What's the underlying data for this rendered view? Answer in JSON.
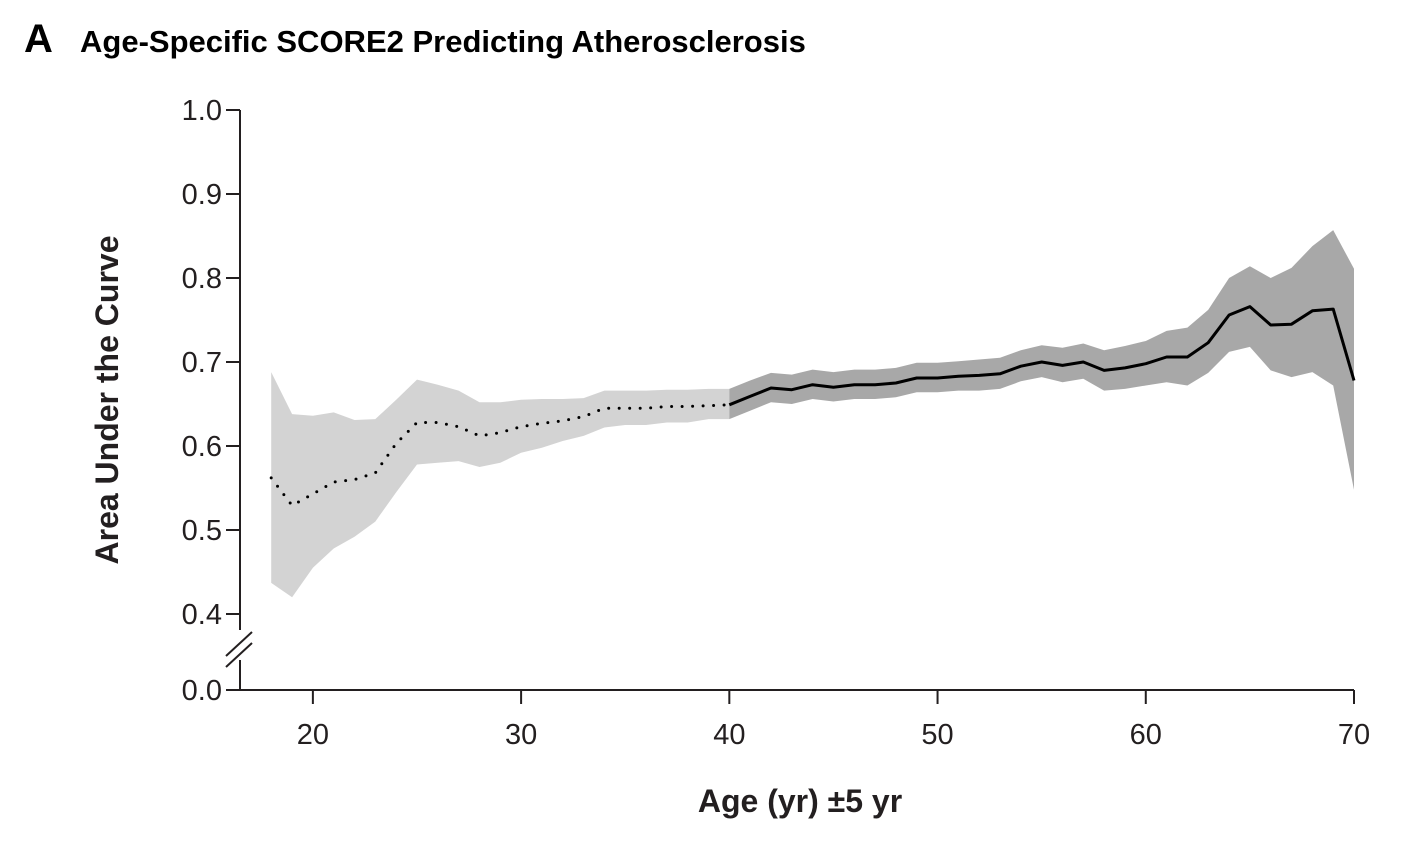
{
  "panel_label": "A",
  "chart_data": {
    "type": "line",
    "title": "Age-Specific SCORE2 Predicting Atherosclerosis",
    "xlabel": "Age (yr) ±5 yr",
    "ylabel": "Area Under the Curve",
    "xlim": [
      16.5,
      70
    ],
    "ylim": [
      0.4,
      1.0
    ],
    "y_axis_break": true,
    "y_break_baseline": 0.0,
    "x_ticks": [
      20,
      30,
      40,
      50,
      60,
      70
    ],
    "x_tick_labels": [
      "20",
      "30",
      "40",
      "50",
      "60",
      "70"
    ],
    "y_ticks": [
      0.4,
      0.5,
      0.6,
      0.7,
      0.8,
      0.9,
      1.0
    ],
    "y_tick_labels": [
      "0.4",
      "0.5",
      "0.6",
      "0.7",
      "0.8",
      "0.9",
      "1.0"
    ],
    "y_break_label": "0.0",
    "grid": false,
    "legend": "none",
    "series": [
      {
        "style": "dotted",
        "color": "#000000",
        "band_color": "#d3d3d3",
        "x": [
          18,
          19,
          20,
          21,
          22,
          23,
          24,
          25,
          26,
          27,
          28,
          29,
          30,
          31,
          32,
          33,
          34,
          35,
          36,
          37,
          38,
          39,
          40
        ],
        "y": [
          0.562,
          0.529,
          0.543,
          0.557,
          0.56,
          0.568,
          0.603,
          0.628,
          0.628,
          0.623,
          0.612,
          0.616,
          0.623,
          0.627,
          0.63,
          0.635,
          0.645,
          0.645,
          0.645,
          0.647,
          0.647,
          0.648,
          0.649
        ],
        "lower": [
          0.437,
          0.42,
          0.455,
          0.478,
          0.492,
          0.51,
          0.545,
          0.578,
          0.58,
          0.582,
          0.575,
          0.58,
          0.592,
          0.598,
          0.606,
          0.612,
          0.622,
          0.625,
          0.625,
          0.628,
          0.628,
          0.632,
          0.632
        ],
        "upper": [
          0.688,
          0.638,
          0.636,
          0.64,
          0.631,
          0.632,
          0.655,
          0.679,
          0.673,
          0.666,
          0.652,
          0.652,
          0.655,
          0.656,
          0.656,
          0.657,
          0.666,
          0.666,
          0.666,
          0.667,
          0.667,
          0.668,
          0.668
        ]
      },
      {
        "style": "solid",
        "color": "#000000",
        "band_color": "#a8a8a8",
        "x": [
          40,
          41,
          42,
          43,
          44,
          45,
          46,
          47,
          48,
          49,
          50,
          51,
          52,
          53,
          54,
          55,
          56,
          57,
          58,
          59,
          60,
          61,
          62,
          63,
          64,
          65,
          66,
          67,
          68,
          69,
          70
        ],
        "y": [
          0.649,
          0.659,
          0.669,
          0.667,
          0.673,
          0.67,
          0.673,
          0.673,
          0.675,
          0.681,
          0.681,
          0.683,
          0.684,
          0.686,
          0.695,
          0.7,
          0.696,
          0.7,
          0.69,
          0.693,
          0.698,
          0.706,
          0.706,
          0.723,
          0.756,
          0.766,
          0.744,
          0.745,
          0.761,
          0.763,
          0.678
        ],
        "lower": [
          0.632,
          0.642,
          0.652,
          0.65,
          0.656,
          0.653,
          0.656,
          0.656,
          0.658,
          0.664,
          0.664,
          0.666,
          0.666,
          0.668,
          0.677,
          0.682,
          0.676,
          0.68,
          0.666,
          0.668,
          0.672,
          0.676,
          0.672,
          0.687,
          0.712,
          0.718,
          0.69,
          0.682,
          0.688,
          0.672,
          0.548
        ],
        "upper": [
          0.668,
          0.678,
          0.687,
          0.685,
          0.691,
          0.688,
          0.691,
          0.691,
          0.693,
          0.699,
          0.699,
          0.701,
          0.703,
          0.705,
          0.714,
          0.72,
          0.717,
          0.722,
          0.714,
          0.719,
          0.725,
          0.737,
          0.741,
          0.762,
          0.8,
          0.814,
          0.8,
          0.812,
          0.838,
          0.857,
          0.811
        ]
      }
    ]
  }
}
